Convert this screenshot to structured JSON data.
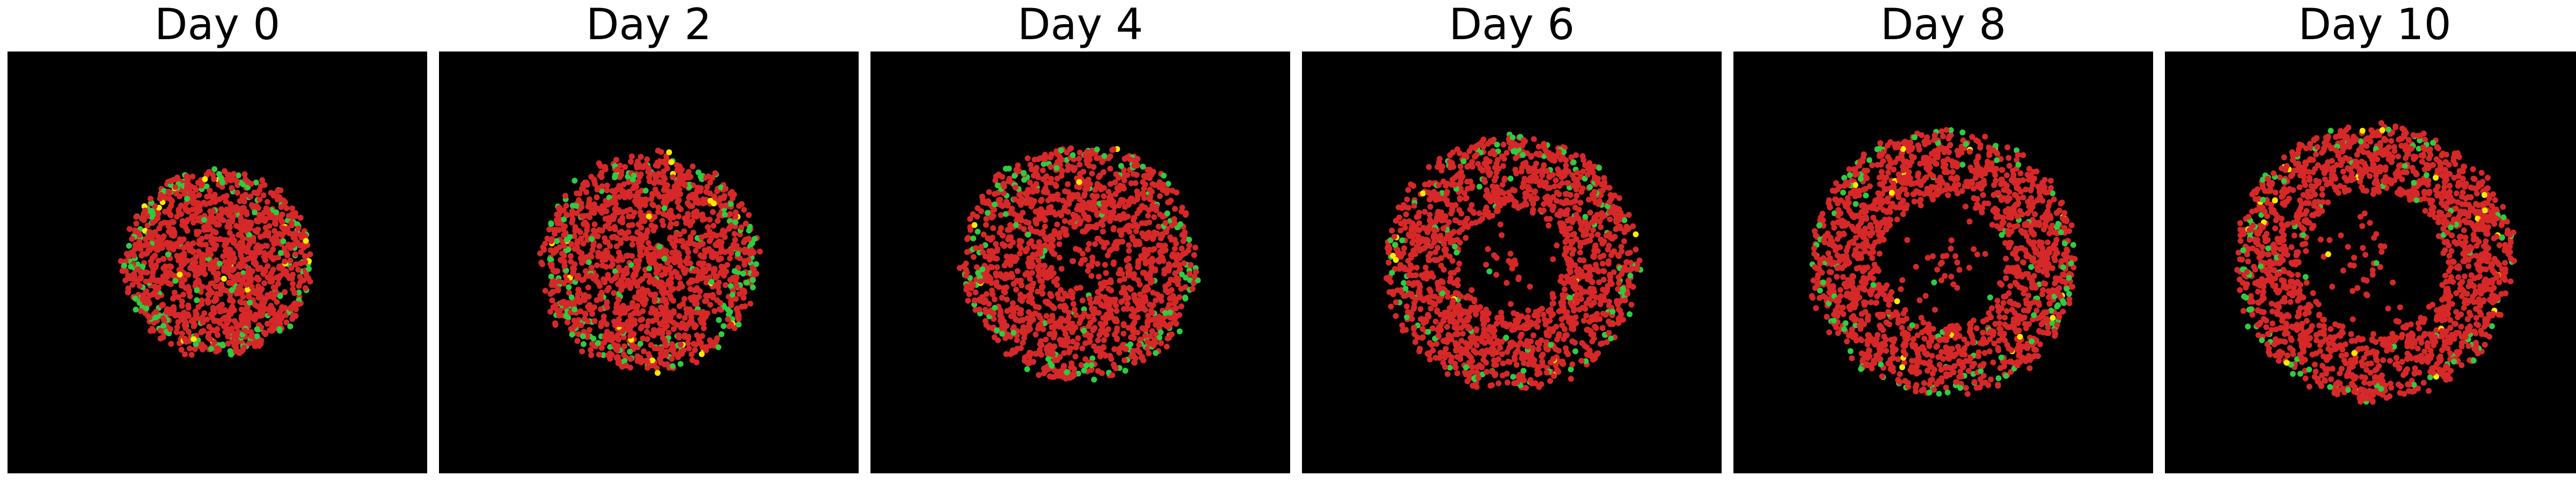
{
  "chart_data": {
    "type": "scatter",
    "grid": false,
    "axes_visible": false,
    "background": "#000000",
    "colors": {
      "red": "#d62828",
      "green": "#2ecc40",
      "yellow": "#ffeb00"
    },
    "panels": [
      {
        "title": "Day 0",
        "ring_outer": 0.62,
        "ring_inner": 0.0,
        "cells": 1400,
        "green_frac": 0.07,
        "yellow_frac": 0.01
      },
      {
        "title": "Day 2",
        "ring_outer": 0.72,
        "ring_inner": 0.0,
        "cells": 1550,
        "green_frac": 0.06,
        "yellow_frac": 0.01
      },
      {
        "title": "Day 4",
        "ring_outer": 0.78,
        "ring_inner": 0.2,
        "cells": 1600,
        "green_frac": 0.06,
        "yellow_frac": 0.01
      },
      {
        "title": "Day 6",
        "ring_outer": 0.84,
        "ring_inner": 0.35,
        "cells": 1650,
        "green_frac": 0.05,
        "yellow_frac": 0.01
      },
      {
        "title": "Day 8",
        "ring_outer": 0.88,
        "ring_inner": 0.42,
        "cells": 1700,
        "green_frac": 0.05,
        "yellow_frac": 0.01
      },
      {
        "title": "Day 10",
        "ring_outer": 0.92,
        "ring_inner": 0.48,
        "cells": 1750,
        "green_frac": 0.05,
        "yellow_frac": 0.01
      }
    ]
  }
}
